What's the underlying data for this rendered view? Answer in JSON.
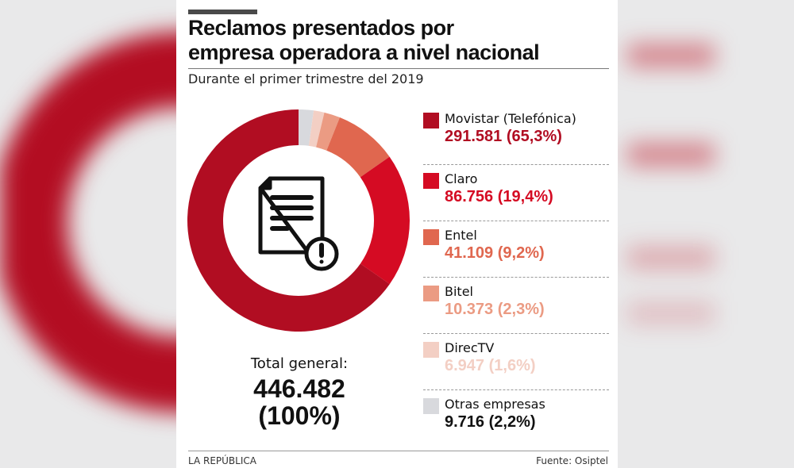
{
  "title_line1": "Reclamos presentados por",
  "title_line2": "empresa operadora a nivel nacional",
  "subtitle": "Durante el primer trimestre del 2019",
  "total": {
    "label": "Total general:",
    "value": "446.482",
    "percent": "(100%)"
  },
  "footer": {
    "source_brand": "LA REPÚBLICA",
    "source": "Fuente: Osiptel"
  },
  "chart_data": {
    "type": "pie",
    "variant": "donut",
    "center_icon": "document-warning-icon",
    "series": [
      {
        "name": "Movistar (Telefónica)",
        "label": "291.581 (65,3%)",
        "value": 291581,
        "percent": 65.3,
        "color": "#b10d22"
      },
      {
        "name": "Claro",
        "label": "86.756 (19,4%)",
        "value": 86756,
        "percent": 19.4,
        "color": "#d50b23"
      },
      {
        "name": "Entel",
        "label": "41.109 (9,2%)",
        "value": 41109,
        "percent": 9.2,
        "color": "#e0674f"
      },
      {
        "name": "Bitel",
        "label": "10.373 (2,3%)",
        "value": 10373,
        "percent": 2.3,
        "color": "#eb9b83"
      },
      {
        "name": "DirecTV",
        "label": "6.947 (1,6%)",
        "value": 6947,
        "percent": 1.6,
        "color": "#f3cfc4"
      },
      {
        "name": "Otras empresas",
        "label": "9.716 (2,2%)",
        "value": 9716,
        "percent": 2.2,
        "color": "#d8d9dd",
        "label_color": "#111111"
      }
    ],
    "legend": "right"
  }
}
